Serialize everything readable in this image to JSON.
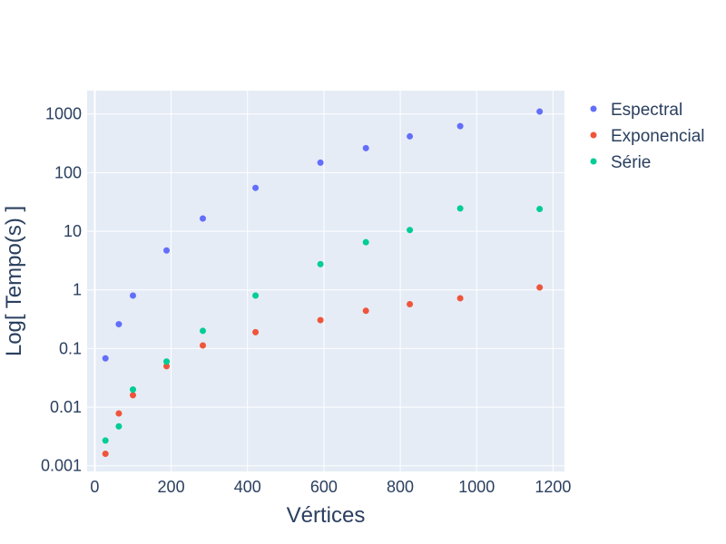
{
  "chart_data": {
    "type": "scatter",
    "title": "",
    "xlabel": "Vértices",
    "ylabel": "Log[ Tempo(s) ]",
    "xlim": [
      -20,
      1230
    ],
    "ylim": [
      0.0008,
      2500
    ],
    "y_scale": "log",
    "grid": true,
    "legend_position": "right",
    "background": "#e5ecf6",
    "x_ticks": [
      0,
      200,
      400,
      600,
      800,
      1000,
      1200
    ],
    "x_tick_labels": [
      "0",
      "200",
      "400",
      "600",
      "800",
      "1000",
      "1200"
    ],
    "y_ticks": [
      0.001,
      0.01,
      0.1,
      1,
      10,
      100,
      1000
    ],
    "y_tick_labels": [
      "0.001",
      "0.01",
      "0.1",
      "1",
      "10",
      "100",
      "1000"
    ],
    "series": [
      {
        "name": "Espectral",
        "color": "#636efa",
        "x": [
          28,
          63,
          100,
          188,
          283,
          421,
          591,
          710,
          825,
          957,
          1165
        ],
        "y": [
          0.068,
          0.26,
          0.8,
          4.7,
          16.5,
          55,
          148,
          262,
          415,
          620,
          1100
        ]
      },
      {
        "name": "Exponencial",
        "color": "#ef553b",
        "x": [
          28,
          63,
          100,
          188,
          283,
          421,
          591,
          710,
          825,
          957,
          1165
        ],
        "y": [
          0.0016,
          0.0078,
          0.016,
          0.05,
          0.113,
          0.19,
          0.305,
          0.44,
          0.57,
          0.72,
          1.1
        ]
      },
      {
        "name": "Série",
        "color": "#00cc96",
        "x": [
          28,
          63,
          100,
          188,
          283,
          421,
          591,
          710,
          825,
          957,
          1165
        ],
        "y": [
          0.0027,
          0.0047,
          0.02,
          0.06,
          0.2,
          0.8,
          2.75,
          6.5,
          10.5,
          24.5,
          24
        ]
      }
    ]
  }
}
